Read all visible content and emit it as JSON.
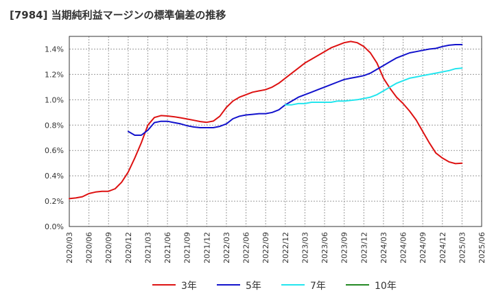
{
  "title": "[7984]  当期純利益マージンの標準偏差の推移",
  "chart_data": {
    "type": "line",
    "title": "[7984]  当期純利益マージンの標準偏差の推移",
    "xlabel": "",
    "ylabel": "",
    "ylim": [
      0,
      0.015
    ],
    "y_ticks": [
      "0.0%",
      "0.2%",
      "0.4%",
      "0.6%",
      "0.8%",
      "1.0%",
      "1.2%",
      "1.4%"
    ],
    "x_ticks": [
      "2020/03",
      "2020/06",
      "2020/09",
      "2020/12",
      "2021/03",
      "2021/06",
      "2021/09",
      "2021/12",
      "2022/03",
      "2022/06",
      "2022/09",
      "2022/12",
      "2023/03",
      "2023/06",
      "2023/09",
      "2023/12",
      "2024/03",
      "2024/06",
      "2024/09",
      "2024/12",
      "2025/03",
      "2025/06"
    ],
    "grid": true,
    "legend_position": "bottom",
    "series": [
      {
        "name": "3年",
        "color": "#dd1111",
        "x": [
          "2020/03",
          "2020/04",
          "2020/05",
          "2020/06",
          "2020/07",
          "2020/08",
          "2020/09",
          "2020/10",
          "2020/11",
          "2020/12",
          "2021/01",
          "2021/02",
          "2021/03",
          "2021/04",
          "2021/05",
          "2021/06",
          "2021/07",
          "2021/08",
          "2021/09",
          "2021/10",
          "2021/11",
          "2021/12",
          "2022/01",
          "2022/02",
          "2022/03",
          "2022/04",
          "2022/05",
          "2022/06",
          "2022/07",
          "2022/08",
          "2022/09",
          "2022/10",
          "2022/11",
          "2022/12",
          "2023/01",
          "2023/02",
          "2023/03",
          "2023/04",
          "2023/05",
          "2023/06",
          "2023/07",
          "2023/08",
          "2023/09",
          "2023/10",
          "2023/11",
          "2023/12",
          "2024/01",
          "2024/02",
          "2024/03",
          "2024/04",
          "2024/05",
          "2024/06",
          "2024/07",
          "2024/08",
          "2024/09",
          "2024/10",
          "2024/11",
          "2024/12",
          "2025/01",
          "2025/02",
          "2025/03"
        ],
        "values": [
          0.0022,
          0.00225,
          0.00235,
          0.0026,
          0.00272,
          0.00278,
          0.00278,
          0.00298,
          0.0035,
          0.0043,
          0.0054,
          0.0066,
          0.008,
          0.0086,
          0.00875,
          0.00872,
          0.00866,
          0.00858,
          0.00848,
          0.00838,
          0.00828,
          0.00822,
          0.00832,
          0.0087,
          0.0094,
          0.0099,
          0.0102,
          0.0104,
          0.0106,
          0.0107,
          0.0108,
          0.011,
          0.0113,
          0.0117,
          0.0121,
          0.0125,
          0.0129,
          0.0132,
          0.0135,
          0.0138,
          0.0141,
          0.0143,
          0.0145,
          0.0146,
          0.0145,
          0.0142,
          0.0137,
          0.0129,
          0.0117,
          0.0109,
          0.0102,
          0.0097,
          0.0091,
          0.0084,
          0.0075,
          0.0066,
          0.0058,
          0.0054,
          0.0051,
          0.00496,
          0.005
        ]
      },
      {
        "name": "5年",
        "color": "#1111cc",
        "x": [
          "2020/12",
          "2021/01",
          "2021/02",
          "2021/03",
          "2021/04",
          "2021/05",
          "2021/06",
          "2021/07",
          "2021/08",
          "2021/09",
          "2021/10",
          "2021/11",
          "2021/12",
          "2022/01",
          "2022/02",
          "2022/03",
          "2022/04",
          "2022/05",
          "2022/06",
          "2022/07",
          "2022/08",
          "2022/09",
          "2022/10",
          "2022/11",
          "2022/12",
          "2023/01",
          "2023/02",
          "2023/03",
          "2023/04",
          "2023/05",
          "2023/06",
          "2023/07",
          "2023/08",
          "2023/09",
          "2023/10",
          "2023/11",
          "2023/12",
          "2024/01",
          "2024/02",
          "2024/03",
          "2024/04",
          "2024/05",
          "2024/06",
          "2024/07",
          "2024/08",
          "2024/09",
          "2024/10",
          "2024/11",
          "2024/12",
          "2025/01",
          "2025/02",
          "2025/03"
        ],
        "values": [
          0.0075,
          0.0072,
          0.0072,
          0.0076,
          0.0082,
          0.0083,
          0.0083,
          0.0082,
          0.0081,
          0.00795,
          0.00785,
          0.0078,
          0.0078,
          0.0078,
          0.0079,
          0.0081,
          0.0085,
          0.0087,
          0.0088,
          0.00885,
          0.0089,
          0.0089,
          0.009,
          0.0092,
          0.0096,
          0.0099,
          0.0102,
          0.0104,
          0.0106,
          0.0108,
          0.011,
          0.0112,
          0.0114,
          0.0116,
          0.0117,
          0.0118,
          0.0119,
          0.0121,
          0.0124,
          0.0127,
          0.013,
          0.0133,
          0.0135,
          0.0137,
          0.0138,
          0.0139,
          0.014,
          0.01405,
          0.0142,
          0.0143,
          0.01435,
          0.01435
        ]
      },
      {
        "name": "7年",
        "color": "#22e5ee",
        "x": [
          "2022/12",
          "2023/01",
          "2023/02",
          "2023/03",
          "2023/04",
          "2023/05",
          "2023/06",
          "2023/07",
          "2023/08",
          "2023/09",
          "2023/10",
          "2023/11",
          "2023/12",
          "2024/01",
          "2024/02",
          "2024/03",
          "2024/04",
          "2024/05",
          "2024/06",
          "2024/07",
          "2024/08",
          "2024/09",
          "2024/10",
          "2024/11",
          "2024/12",
          "2025/01",
          "2025/02",
          "2025/03"
        ],
        "values": [
          0.0096,
          0.0096,
          0.0097,
          0.0097,
          0.0098,
          0.0098,
          0.0098,
          0.0098,
          0.0099,
          0.0099,
          0.00995,
          0.01,
          0.0101,
          0.0102,
          0.0104,
          0.0107,
          0.011,
          0.0113,
          0.0115,
          0.0117,
          0.0118,
          0.0119,
          0.012,
          0.0121,
          0.0122,
          0.0123,
          0.01245,
          0.0125
        ]
      },
      {
        "name": "10年",
        "color": "#228822",
        "x": [],
        "values": []
      }
    ]
  }
}
